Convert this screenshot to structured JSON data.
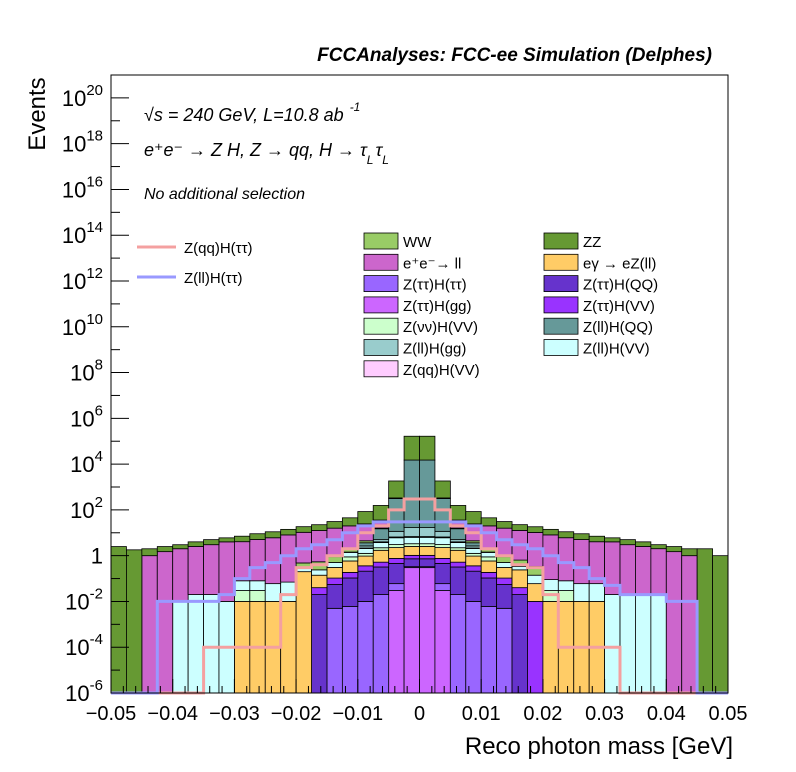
{
  "chart_data": {
    "type": "bar",
    "title": "FCCAnalyses: FCC-ee Simulation (Delphes)",
    "xlabel": "Reco photon mass [GeV]",
    "ylabel": "Events",
    "x_scale": "linear",
    "y_scale": "log",
    "xlim": [
      -0.05,
      0.05
    ],
    "ylim": [
      1e-06,
      1e+21
    ],
    "x_ticks": [
      "−0.05",
      "−0.04",
      "−0.03",
      "−0.02",
      "−0.01",
      "0",
      "0.01",
      "0.02",
      "0.03",
      "0.04",
      "0.05"
    ],
    "y_ticks": [
      {
        "base": "10",
        "exp": "20"
      },
      {
        "base": "10",
        "exp": "18"
      },
      {
        "base": "10",
        "exp": "16"
      },
      {
        "base": "10",
        "exp": "14"
      },
      {
        "base": "10",
        "exp": "12"
      },
      {
        "base": "10",
        "exp": "10"
      },
      {
        "base": "10",
        "exp": "8"
      },
      {
        "base": "10",
        "exp": "6"
      },
      {
        "base": "10",
        "exp": "4"
      },
      {
        "base": "10",
        "exp": "2"
      },
      {
        "base": "1",
        "exp": ""
      },
      {
        "base": "10",
        "exp": "-2"
      },
      {
        "base": "10",
        "exp": "-4"
      },
      {
        "base": "10",
        "exp": "-6"
      }
    ],
    "annotations": {
      "energy": "√s = 240 GeV, L=10.8 ab",
      "energy_exp": "-1",
      "process": "e⁺e⁻ → Z H, Z  → qq, H  → τ",
      "process_sub": "L",
      "selection": "No additional selection"
    },
    "legend": {
      "position": "top",
      "lines": [
        {
          "label": "Z(qq)H(ττ)",
          "color": "#f4a0a0"
        },
        {
          "label": "Z(ll)H(ττ)",
          "color": "#9999ff"
        }
      ],
      "fills": [
        {
          "label": "WW",
          "color": "#99cc66"
        },
        {
          "label": "ZZ",
          "color": "#669933"
        },
        {
          "label": "e⁺e⁻→ ll",
          "color": "#cc66cc"
        },
        {
          "label": "eγ → eZ(ll)",
          "color": "#ffcc66"
        },
        {
          "label": "Z(ττ)H(ττ)",
          "color": "#9966ff"
        },
        {
          "label": "Z(ττ)H(QQ)",
          "color": "#6633cc"
        },
        {
          "label": "Z(ττ)H(gg)",
          "color": "#cc66ff"
        },
        {
          "label": "Z(ττ)H(VV)",
          "color": "#9933ff"
        },
        {
          "label": "Z(νν)H(VV)",
          "color": "#ccffcc"
        },
        {
          "label": "Z(ll)H(QQ)",
          "color": "#669999"
        },
        {
          "label": "Z(ll)H(gg)",
          "color": "#99cccc"
        },
        {
          "label": "Z(ll)H(VV)",
          "color": "#ccffff"
        },
        {
          "label": "Z(qq)H(VV)",
          "color": "#ffccff"
        }
      ]
    },
    "bins": {
      "start": -0.05,
      "width": 0.0025,
      "count": 40
    },
    "stack_bottom_to_top": [
      {
        "name": "Z(ττ)H(gg)",
        "color": "#cc66ff",
        "values": [
          0,
          0,
          0,
          0,
          0,
          0,
          0,
          0,
          0,
          0,
          0,
          0,
          0,
          0,
          0,
          0,
          0,
          0,
          0.03,
          0.3,
          0.3,
          0.03,
          0,
          0,
          0,
          0,
          0,
          0,
          0,
          0,
          0,
          0,
          0,
          0,
          0,
          0,
          0,
          0,
          0,
          0
        ]
      },
      {
        "name": "Z(ττ)H(ττ)",
        "color": "#9966ff",
        "values": [
          0,
          0,
          0,
          0,
          0,
          0,
          0,
          0,
          0,
          0,
          0,
          0,
          0,
          0,
          0.005,
          0.006,
          0.01,
          0.02,
          0.03,
          0.03,
          0.03,
          0.03,
          0.02,
          0.01,
          0.006,
          0.005,
          0,
          0,
          0,
          0,
          0,
          0,
          0,
          0,
          0,
          0,
          0,
          0,
          0,
          0
        ]
      },
      {
        "name": "Z(ττ)H(QQ)",
        "color": "#6633cc",
        "values": [
          0,
          0,
          0,
          0,
          0,
          0,
          0,
          0,
          0,
          0,
          0,
          0,
          0,
          0.02,
          0.05,
          0.1,
          0.2,
          0.3,
          0.4,
          0.4,
          0.4,
          0.4,
          0.3,
          0.2,
          0.1,
          0.05,
          0.02,
          0,
          0,
          0,
          0,
          0,
          0,
          0,
          0,
          0,
          0,
          0,
          0,
          0
        ]
      },
      {
        "name": "Z(ττ)H(VV)",
        "color": "#9933ff",
        "values": [
          0,
          0,
          0,
          0,
          0,
          0,
          0,
          0,
          0,
          0,
          0,
          0,
          0,
          0.02,
          0.05,
          0.08,
          0.15,
          0.2,
          0.3,
          0.3,
          0.3,
          0.3,
          0.2,
          0.15,
          0.08,
          0.05,
          0.02,
          0.01,
          0,
          0,
          0,
          0,
          0,
          0,
          0,
          0,
          0,
          0,
          0,
          0
        ]
      },
      {
        "name": "eγ → eZ(ll)",
        "color": "#ffcc66",
        "values": [
          0,
          0,
          0,
          0,
          0,
          0,
          0,
          0,
          0.01,
          0.01,
          0.01,
          0.01,
          0.2,
          0.1,
          0.2,
          0.4,
          0.6,
          1.2,
          1.5,
          1.5,
          1.5,
          1.5,
          1.2,
          0.6,
          0.4,
          0.2,
          0.2,
          0.05,
          0.01,
          0.01,
          0.01,
          0.01,
          0,
          0,
          0,
          0,
          0,
          0,
          0,
          0
        ]
      },
      {
        "name": "Z(νν)H(VV)",
        "color": "#ccffcc",
        "values": [
          0,
          0,
          0,
          0,
          0,
          0,
          0,
          0,
          0.02,
          0.02,
          0,
          0,
          0,
          0,
          0,
          0.3,
          0.3,
          0.5,
          0.8,
          0.8,
          0.8,
          0.8,
          0.5,
          0.3,
          0.3,
          0,
          0,
          0,
          0.02,
          0.02,
          0,
          0,
          0,
          0,
          0,
          0,
          0,
          0,
          0,
          0
        ]
      },
      {
        "name": "Z(ll)H(VV)",
        "color": "#ccffff",
        "values": [
          0,
          0,
          0,
          0,
          0.01,
          0.02,
          0.02,
          0.01,
          0.05,
          0.05,
          0.05,
          0.06,
          0.08,
          0.1,
          0.2,
          0.5,
          0.8,
          1.5,
          3,
          3,
          3,
          3,
          1.5,
          0.8,
          0.5,
          0.2,
          0.1,
          0.08,
          0.06,
          0.05,
          0.05,
          0.05,
          0.02,
          0.02,
          0.02,
          0.02,
          0,
          0,
          0,
          0
        ]
      },
      {
        "name": "Z(qq)H(VV)",
        "color": "#ffccff",
        "values": [
          0,
          0,
          0,
          0,
          0,
          0,
          0,
          0,
          0,
          0,
          0,
          0,
          0,
          0,
          0,
          0.05,
          0.1,
          0.3,
          0.5,
          0.5,
          0.5,
          0.5,
          0.3,
          0.1,
          0.05,
          0,
          0,
          0,
          0,
          0,
          0,
          0,
          0,
          0,
          0,
          0,
          0,
          0,
          0,
          0
        ]
      },
      {
        "name": "Z(ll)H(gg)",
        "color": "#99cccc",
        "values": [
          0,
          0,
          0,
          0,
          0,
          0,
          0,
          0,
          0,
          0,
          0,
          0,
          0,
          0,
          0,
          0,
          0.5,
          1,
          5,
          10,
          10,
          5,
          1,
          0.5,
          0,
          0,
          0,
          0,
          0,
          0,
          0,
          0,
          0,
          0,
          0,
          0,
          0,
          0,
          0,
          0
        ]
      },
      {
        "name": "Z(ll)H(QQ)",
        "color": "#669999",
        "values": [
          0,
          0,
          0,
          0,
          0,
          0,
          0,
          0,
          0,
          0,
          0,
          0,
          0,
          0,
          0,
          0,
          1,
          10,
          300,
          15000,
          15000,
          300,
          10,
          1,
          0,
          0,
          0,
          0,
          0,
          0,
          0,
          0,
          0,
          0,
          0,
          0,
          0,
          0,
          0,
          0
        ]
      },
      {
        "name": "WW",
        "color": "#99cc66",
        "values": [
          0,
          0,
          0,
          0,
          0,
          0,
          0,
          0,
          0,
          0,
          0,
          0,
          0.2,
          0.3,
          0.4,
          0.6,
          0.8,
          1,
          1,
          1,
          1,
          1,
          1,
          0.8,
          0.6,
          0.4,
          0.3,
          0.2,
          0,
          0,
          0,
          0,
          0,
          0,
          0,
          0,
          0,
          0,
          0,
          0
        ]
      },
      {
        "name": "e⁺e⁻→ ll",
        "color": "#cc66cc",
        "values": [
          0,
          0,
          1,
          1.5,
          2,
          2.5,
          3,
          4,
          4,
          5,
          6,
          8,
          10,
          12,
          15,
          18,
          20,
          20,
          20,
          20,
          20,
          20,
          20,
          20,
          18,
          15,
          12,
          10,
          8,
          6,
          5,
          4,
          4,
          3,
          2.5,
          2,
          1.5,
          1,
          0,
          0
        ]
      },
      {
        "name": "ZZ",
        "color": "#669933",
        "values": [
          2.5,
          1.8,
          1,
          1,
          1,
          1.5,
          2,
          2,
          3,
          4,
          5,
          6,
          8,
          10,
          15,
          25,
          60,
          120,
          1500,
          150000,
          150000,
          1500,
          120,
          60,
          25,
          15,
          10,
          8,
          6,
          5,
          4,
          3,
          2,
          2,
          1.5,
          1,
          1,
          1,
          2,
          1
        ]
      }
    ],
    "overlay_lines": [
      {
        "name": "Z(qq)H(ττ)",
        "color": "#f4a0a0",
        "values": [
          0,
          0,
          0,
          0,
          0,
          0,
          0.0001,
          0.0001,
          0.0001,
          0.0001,
          0.0001,
          0.02,
          0.3,
          0.4,
          1,
          2,
          10,
          20,
          100,
          300,
          300,
          100,
          20,
          10,
          2,
          1,
          0.4,
          0.3,
          0.02,
          0.0001,
          0.0001,
          0.0001,
          0.0001,
          0,
          0,
          0,
          0,
          0,
          0,
          0
        ]
      },
      {
        "name": "Z(ll)H(ττ)",
        "color": "#9999ff",
        "values": [
          0,
          0,
          0,
          0.01,
          0.01,
          0.01,
          0.01,
          0.02,
          0.1,
          0.3,
          0.5,
          1,
          2,
          3,
          5,
          10,
          20,
          30,
          30,
          30,
          30,
          30,
          30,
          20,
          10,
          5,
          3,
          2,
          1,
          0.5,
          0.3,
          0.1,
          0.05,
          0.02,
          0.02,
          0.02,
          0.01,
          0.01,
          0,
          0
        ]
      }
    ]
  }
}
